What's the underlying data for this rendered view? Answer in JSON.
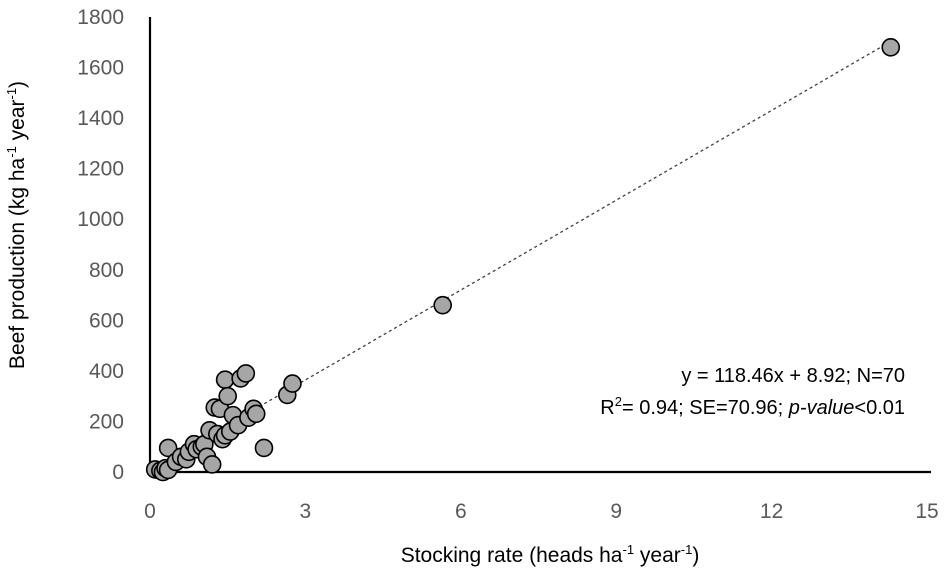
{
  "chart_data": {
    "type": "scatter",
    "title": "",
    "xlabel": {
      "pre": "Stocking rate (heads ha",
      "sup1": "-1",
      "mid": " year",
      "sup2": "-1",
      "post": ")"
    },
    "ylabel": {
      "pre": "Beef production (kg ha",
      "sup1": "-1",
      "mid": " year",
      "sup2": "-1",
      "post": ")"
    },
    "xlim": [
      0,
      15
    ],
    "ylim": [
      0,
      1800
    ],
    "xticks": [
      0,
      3,
      6,
      9,
      12,
      15
    ],
    "yticks": [
      0,
      200,
      400,
      600,
      800,
      1000,
      1200,
      1400,
      1600,
      1800
    ],
    "grid": false,
    "colors": {
      "marker_fill": "#a6a6a6",
      "marker_edge": "#000000",
      "axis": "#000000",
      "tick_text": "#595959",
      "trendline": "#404040"
    },
    "points": [
      {
        "x": 0.1,
        "y": 10
      },
      {
        "x": 0.2,
        "y": 5
      },
      {
        "x": 0.25,
        "y": 0
      },
      {
        "x": 0.3,
        "y": 15
      },
      {
        "x": 0.35,
        "y": 8
      },
      {
        "x": 0.35,
        "y": 95
      },
      {
        "x": 0.5,
        "y": 40
      },
      {
        "x": 0.6,
        "y": 60
      },
      {
        "x": 0.7,
        "y": 50
      },
      {
        "x": 0.75,
        "y": 80
      },
      {
        "x": 0.85,
        "y": 110
      },
      {
        "x": 0.9,
        "y": 90
      },
      {
        "x": 1.0,
        "y": 100
      },
      {
        "x": 1.05,
        "y": 110
      },
      {
        "x": 1.1,
        "y": 60
      },
      {
        "x": 1.15,
        "y": 165
      },
      {
        "x": 1.2,
        "y": 30
      },
      {
        "x": 1.25,
        "y": 255
      },
      {
        "x": 1.3,
        "y": 150
      },
      {
        "x": 1.35,
        "y": 250
      },
      {
        "x": 1.4,
        "y": 130
      },
      {
        "x": 1.45,
        "y": 145
      },
      {
        "x": 1.45,
        "y": 365
      },
      {
        "x": 1.5,
        "y": 300
      },
      {
        "x": 1.55,
        "y": 160
      },
      {
        "x": 1.6,
        "y": 225
      },
      {
        "x": 1.7,
        "y": 185
      },
      {
        "x": 1.75,
        "y": 370
      },
      {
        "x": 1.85,
        "y": 390
      },
      {
        "x": 1.9,
        "y": 215
      },
      {
        "x": 2.0,
        "y": 250
      },
      {
        "x": 2.05,
        "y": 230
      },
      {
        "x": 2.2,
        "y": 95
      },
      {
        "x": 2.65,
        "y": 305
      },
      {
        "x": 2.75,
        "y": 350
      },
      {
        "x": 5.65,
        "y": 660
      },
      {
        "x": 14.3,
        "y": 1680
      }
    ],
    "trendline": {
      "type": "linear",
      "slope": 118.46,
      "intercept": 8.92,
      "x_range": [
        0,
        14.3
      ],
      "style": "dotted"
    },
    "annotations": {
      "line1": "y = 118.46x + 8.92; N=70",
      "line2": {
        "r": "R",
        "sup": "2",
        "rest": "= 0.94; SE=70.96; ",
        "ital": "p-value",
        "tail": "<0.01"
      }
    }
  }
}
